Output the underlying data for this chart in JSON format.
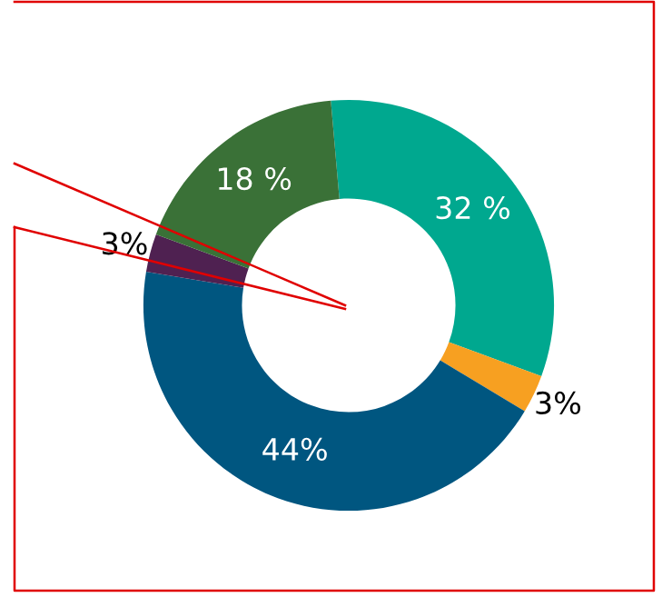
{
  "chart_data": {
    "type": "donut",
    "categories": [
      null,
      null,
      null,
      null,
      null
    ],
    "values": [
      32,
      3,
      44,
      3,
      18
    ],
    "colors": [
      "#00a88f",
      "#f7a021",
      "#005680",
      "#4f2151",
      "#3a7137"
    ],
    "value_labels": [
      "32 %",
      "3%",
      "44%",
      "3%",
      "18 %"
    ]
  }
}
